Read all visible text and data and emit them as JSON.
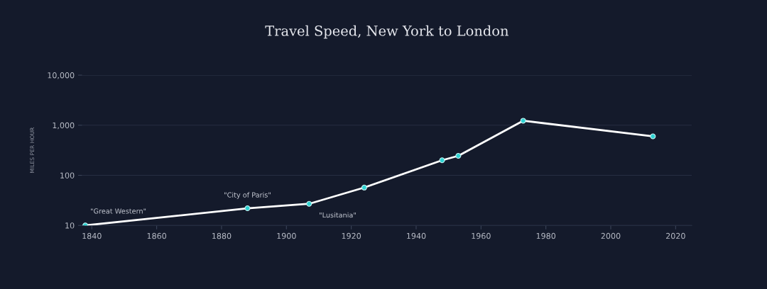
{
  "chart_data": {
    "type": "line",
    "title": "Travel Speed, New York to London",
    "ylabel": "MILES PER HOUR",
    "x": [
      1838,
      1888,
      1907,
      1924,
      1948,
      1953,
      1973,
      2013
    ],
    "series": [
      {
        "color": "#ffffff",
        "values": [
          10,
          22,
          27,
          57,
          200,
          245,
          1230,
          600
        ]
      }
    ],
    "annotations": [
      {
        "text": "\"Great Western\"",
        "x": 1838,
        "y": 10
      },
      {
        "text": "\"City of Paris\"",
        "x": 1888,
        "y": 22
      },
      {
        "text": "\"Lusitania\"",
        "x": 1907,
        "y": 27
      }
    ],
    "log": "y",
    "xlim": [
      1837,
      2025
    ],
    "xticks": [
      1840,
      1860,
      1880,
      1900,
      1920,
      1940,
      1960,
      1980,
      2000,
      2020
    ],
    "ylim": [
      10,
      10000
    ],
    "yticks": [
      {
        "value": 10,
        "label": "10"
      },
      {
        "value": 100,
        "label": "100"
      },
      {
        "value": 1000,
        "label": "1,000"
      },
      {
        "value": 10000,
        "label": "10,000"
      }
    ],
    "grid": "y",
    "marker": "circle",
    "line_style": "solid"
  }
}
